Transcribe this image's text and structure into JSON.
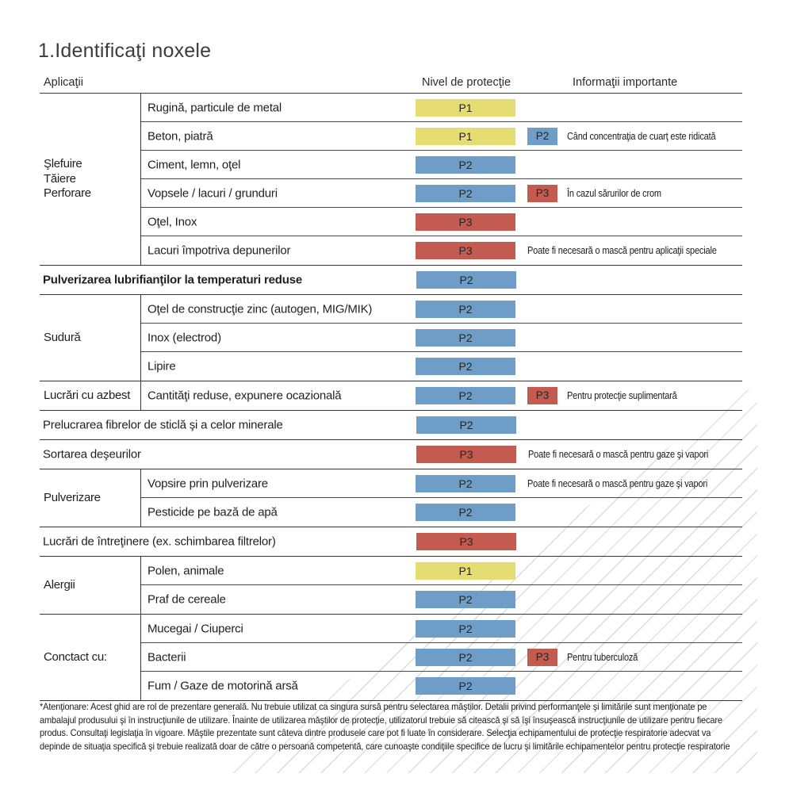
{
  "title": "1.Identificaţi noxele",
  "columns": {
    "applications": "Aplicaţii",
    "protection": "Nivel de protecţie",
    "info": "Informaţii importante"
  },
  "levels": {
    "P1": "#e5dd72",
    "P2": "#6e9dc7",
    "P3": "#c35b51"
  },
  "sections": [
    {
      "type": "group",
      "label": [
        "Şlefuire",
        "Tăiere",
        "Perforare"
      ],
      "rows": [
        {
          "label": "Rugină, particule de metal",
          "main": "P1"
        },
        {
          "label": "Beton, piatră",
          "main": "P1",
          "extra": "P2",
          "info": "Când concentraţia de cuarţ este ridicată"
        },
        {
          "label": "Ciment, lemn, oţel",
          "main": "P2"
        },
        {
          "label": "Vopsele / lacuri / grunduri",
          "main": "P2",
          "extra": "P3",
          "info": "În cazul sărurilor de crom"
        },
        {
          "label": "Oţel, Inox",
          "main": "P3"
        },
        {
          "label": "Lacuri împotriva depunerilor",
          "main": "P3",
          "info": "Poate fi necesară o mască pentru aplicaţii speciale"
        }
      ]
    },
    {
      "type": "full",
      "bold": true,
      "label": "Pulverizarea lubrifianţilor la temperaturi reduse",
      "main": "P2"
    },
    {
      "type": "group",
      "label": [
        "Sudură"
      ],
      "rows": [
        {
          "label": "Oţel de construcţie zinc (autogen, MIG/MIK)",
          "main": "P2"
        },
        {
          "label": "Inox (electrod)",
          "main": "P2"
        },
        {
          "label": "Lipire",
          "main": "P2"
        }
      ]
    },
    {
      "type": "group",
      "label": [
        "Lucrări cu azbest"
      ],
      "rows": [
        {
          "label": "Cantităţi reduse, expunere ocazională",
          "main": "P2",
          "extra": "P3",
          "info": "Pentru protecţie suplimentară"
        }
      ]
    },
    {
      "type": "full",
      "label": "Prelucrarea fibrelor de sticlă şi a celor minerale",
      "main": "P2"
    },
    {
      "type": "full",
      "label": "Sortarea deşeurilor",
      "main": "P3",
      "info": "Poate fi necesară o mască pentru gaze şi vapori"
    },
    {
      "type": "group",
      "label": [
        "Pulverizare"
      ],
      "rows": [
        {
          "label": "Vopsire prin pulverizare",
          "main": "P2",
          "info": "Poate fi necesară o mască pentru gaze şi vapori"
        },
        {
          "label": "Pesticide pe bază de apă",
          "main": "P2"
        }
      ]
    },
    {
      "type": "full",
      "label": "Lucrări de întreţinere (ex. schimbarea filtrelor)",
      "main": "P3"
    },
    {
      "type": "group",
      "label": [
        "Alergii"
      ],
      "rows": [
        {
          "label": "Polen, animale",
          "main": "P1"
        },
        {
          "label": "Praf de cereale",
          "main": "P2"
        }
      ]
    },
    {
      "type": "group",
      "label": [
        "Conctact cu:"
      ],
      "rows": [
        {
          "label": "Mucegai / Ciuperci",
          "main": "P2"
        },
        {
          "label": "Bacterii",
          "main": "P2",
          "extra": "P3",
          "info": "Pentru tuberculoză"
        },
        {
          "label": "Fum / Gaze de motorină arsă",
          "main": "P2"
        }
      ]
    }
  ],
  "footnote": "*Atenţionare: Acest ghid are rol de prezentare generală. Nu trebuie utilizat ca singura sursă pentru selectarea măştilor. Detalii privind performanţele şi limitările sunt menţionate pe ambalajul produsului şi în instrucţiunile de utilizare. Înainte de utilizarea măştilor de protecţie, utilizatorul trebuie să citească şi să îşi însuşească instrucţiunile de utilizare pentru fiecare produs. Consultaţi legislaţia în vigoare. Măştile prezentate sunt câteva dintre produsele care pot fi luate în considerare. Selecţia echipamentului de protecţie respiratorie adecvat va depinde de situaţia specifică şi trebuie realizată doar de către o persoană competentă, care cunoaşte condiţiile specifice de lucru şi limitările echipamentelor pentru protecţie respiratorie"
}
